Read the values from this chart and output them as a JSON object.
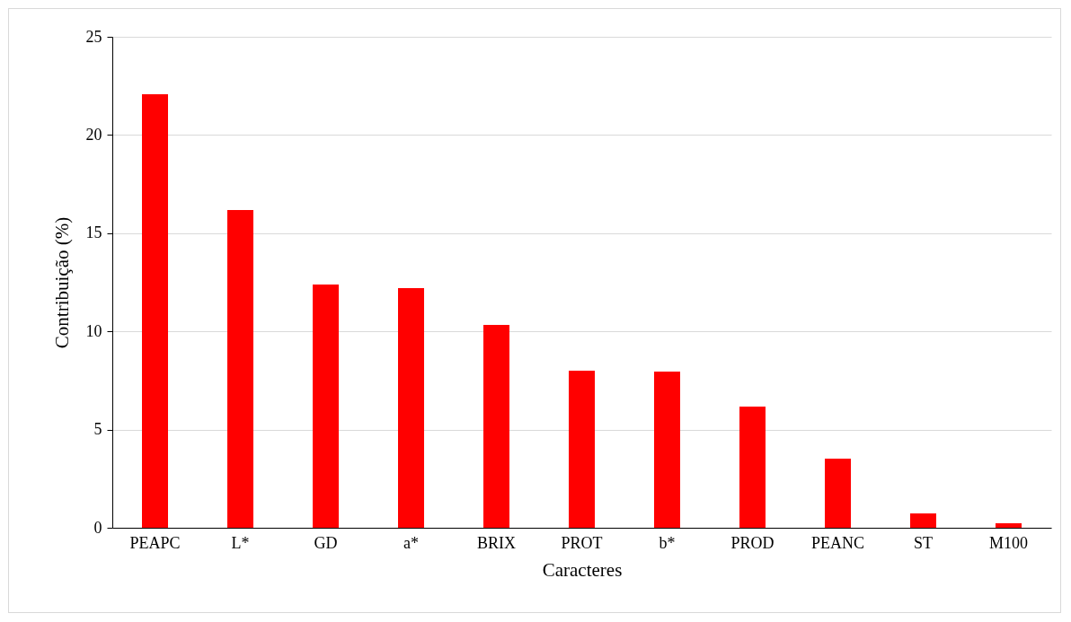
{
  "chart_data": {
    "type": "bar",
    "xlabel": "Caracteres",
    "ylabel": "Contribuição (%)",
    "categories": [
      "PEAPC",
      "L*",
      "GD",
      "a*",
      "BRIX",
      "PROT",
      "b*",
      "PROD",
      "PEANC",
      "ST",
      "M100"
    ],
    "values": [
      22.07,
      16.18,
      12.39,
      12.2,
      10.33,
      8.0,
      7.95,
      6.17,
      3.52,
      0.73,
      0.23
    ],
    "color": "#ff0000",
    "ylim": [
      0,
      25
    ],
    "yticks": [
      0,
      5,
      10,
      15,
      20,
      25
    ],
    "grid": "y"
  }
}
